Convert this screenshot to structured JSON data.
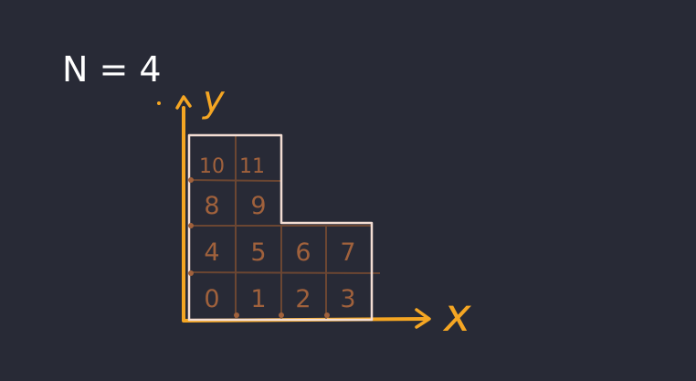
{
  "title": "N = 4",
  "axes": {
    "x_label": "x",
    "y_label": "y"
  },
  "grid": {
    "cells": [
      {
        "label": "0"
      },
      {
        "label": "1"
      },
      {
        "label": "2"
      },
      {
        "label": "3"
      },
      {
        "label": "4"
      },
      {
        "label": "5"
      },
      {
        "label": "6"
      },
      {
        "label": "7"
      },
      {
        "label": "8"
      },
      {
        "label": "9"
      },
      {
        "label": "10"
      },
      {
        "label": "11"
      }
    ]
  },
  "colors": {
    "background": "#282a36",
    "axis": "#f5a623",
    "outline": "#f3ddd3",
    "grid_lines": "#6b4632",
    "numbers": "#a0613c",
    "title": "#ffffff"
  }
}
